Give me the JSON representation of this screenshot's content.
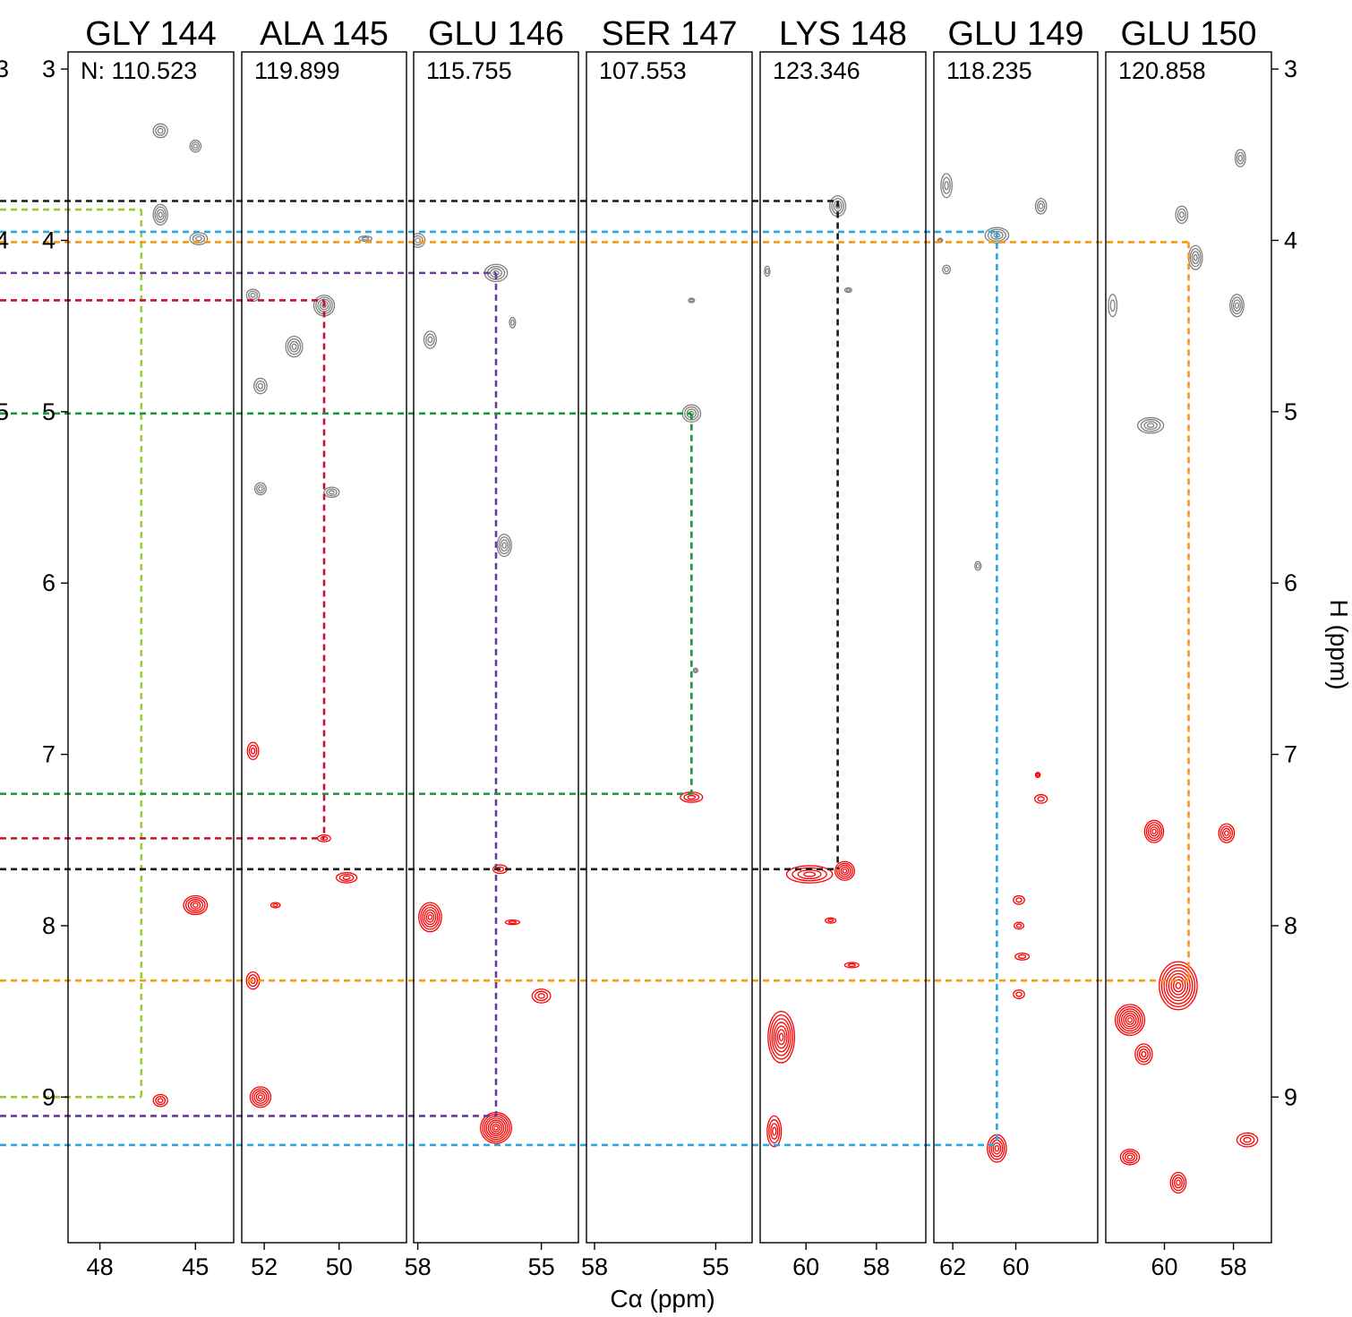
{
  "chart_data": {
    "type": "contour",
    "xlabel": "Cα (ppm)",
    "ylabel": "H (ppm)",
    "ylim": [
      9.85,
      2.9
    ],
    "y_ticks": [
      3,
      4,
      5,
      6,
      7,
      8,
      9
    ],
    "left_edge_tick_fragments": [
      "3",
      "4",
      "5"
    ],
    "colors": {
      "negative_contours": "#808080",
      "positive_contours": "#ff0000",
      "frame": "#000000"
    },
    "strips": [
      {
        "residue": "GLY 144",
        "n_label": "N: 110.523",
        "xlim": [
          49.0,
          43.8
        ],
        "x_ticks": [
          48,
          45
        ]
      },
      {
        "residue": "ALA 145",
        "n_label": "119.899",
        "xlim": [
          52.6,
          48.2
        ],
        "x_ticks": [
          52,
          50
        ]
      },
      {
        "residue": "GLU 146",
        "n_label": "115.755",
        "xlim": [
          58.1,
          54.1
        ],
        "x_ticks": [
          58,
          55
        ]
      },
      {
        "residue": "SER 147",
        "n_label": "107.553",
        "xlim": [
          58.2,
          54.1
        ],
        "x_ticks": [
          58,
          55
        ]
      },
      {
        "residue": "LYS 148",
        "n_label": "123.346",
        "xlim": [
          61.3,
          56.6
        ],
        "x_ticks": [
          60,
          58
        ]
      },
      {
        "residue": "GLU 149",
        "n_label": "118.235",
        "xlim": [
          62.6,
          57.4
        ],
        "x_ticks": [
          62,
          60
        ]
      },
      {
        "residue": "GLU 150",
        "n_label": "120.858",
        "xlim": [
          61.7,
          56.9
        ],
        "x_ticks": [
          60,
          58
        ]
      }
    ],
    "connections": [
      {
        "color": "#9acd32",
        "ca": 46.7,
        "from_strip": 0,
        "h_top": 3.82,
        "h_bottom": 9.0
      },
      {
        "color": "#c8102e",
        "ca": 50.4,
        "from_strip": 1,
        "h_top": 4.35,
        "h_bottom": 7.49
      },
      {
        "color": "#6a3d9a",
        "ca": 56.1,
        "from_strip": 2,
        "h_top": 4.19,
        "h_bottom": 9.11
      },
      {
        "color": "#1a9641",
        "ca": 55.6,
        "from_strip": 3,
        "h_top": 5.01,
        "h_bottom": 7.23
      },
      {
        "color": "#1a1a1a",
        "ca": 59.1,
        "from_strip": 4,
        "h_top": 3.77,
        "h_bottom": 7.67
      },
      {
        "color": "#29a8e0",
        "ca": 60.6,
        "from_strip": 5,
        "h_top": 3.95,
        "h_bottom": 9.28
      },
      {
        "color": "#f39c12",
        "ca": 59.3,
        "from_strip": 6,
        "h_top": 4.01,
        "h_bottom": 8.32
      }
    ],
    "peaks": [
      {
        "s": 0,
        "ca": 46.1,
        "h": 3.36,
        "w": 0.45,
        "d": 0.08,
        "sign": "neg"
      },
      {
        "s": 0,
        "ca": 45.0,
        "h": 3.45,
        "w": 0.35,
        "d": 0.07,
        "sign": "neg"
      },
      {
        "s": 0,
        "ca": 46.1,
        "h": 3.85,
        "w": 0.45,
        "d": 0.12,
        "sign": "neg"
      },
      {
        "s": 0,
        "ca": 44.9,
        "h": 3.99,
        "w": 0.55,
        "d": 0.07,
        "sign": "neg"
      },
      {
        "s": 0,
        "ca": 45.0,
        "h": 7.88,
        "w": 0.75,
        "d": 0.11,
        "sign": "pos"
      },
      {
        "s": 0,
        "ca": 46.1,
        "h": 9.02,
        "w": 0.45,
        "d": 0.07,
        "sign": "pos"
      },
      {
        "s": 1,
        "ca": 52.3,
        "h": 4.32,
        "w": 0.35,
        "d": 0.07,
        "sign": "neg"
      },
      {
        "s": 1,
        "ca": 50.4,
        "h": 4.38,
        "w": 0.55,
        "d": 0.12,
        "sign": "neg"
      },
      {
        "s": 1,
        "ca": 51.2,
        "h": 4.62,
        "w": 0.45,
        "d": 0.12,
        "sign": "neg"
      },
      {
        "s": 1,
        "ca": 52.1,
        "h": 4.85,
        "w": 0.35,
        "d": 0.09,
        "sign": "neg"
      },
      {
        "s": 1,
        "ca": 49.3,
        "h": 3.99,
        "w": 0.35,
        "d": 0.03,
        "sign": "neg"
      },
      {
        "s": 1,
        "ca": 52.1,
        "h": 5.45,
        "w": 0.3,
        "d": 0.07,
        "sign": "neg"
      },
      {
        "s": 1,
        "ca": 50.2,
        "h": 5.47,
        "w": 0.4,
        "d": 0.06,
        "sign": "neg"
      },
      {
        "s": 1,
        "ca": 52.3,
        "h": 6.98,
        "w": 0.3,
        "d": 0.1,
        "sign": "pos"
      },
      {
        "s": 1,
        "ca": 50.4,
        "h": 7.49,
        "w": 0.35,
        "d": 0.04,
        "sign": "pos"
      },
      {
        "s": 1,
        "ca": 49.8,
        "h": 7.72,
        "w": 0.55,
        "d": 0.06,
        "sign": "pos"
      },
      {
        "s": 1,
        "ca": 51.7,
        "h": 7.88,
        "w": 0.25,
        "d": 0.03,
        "sign": "pos"
      },
      {
        "s": 1,
        "ca": 52.3,
        "h": 8.32,
        "w": 0.35,
        "d": 0.1,
        "sign": "pos"
      },
      {
        "s": 1,
        "ca": 52.1,
        "h": 9.0,
        "w": 0.55,
        "d": 0.12,
        "sign": "pos"
      },
      {
        "s": 2,
        "ca": 58.0,
        "h": 4.0,
        "w": 0.35,
        "d": 0.08,
        "sign": "neg"
      },
      {
        "s": 2,
        "ca": 56.1,
        "h": 4.19,
        "w": 0.55,
        "d": 0.1,
        "sign": "neg"
      },
      {
        "s": 2,
        "ca": 57.7,
        "h": 4.58,
        "w": 0.3,
        "d": 0.1,
        "sign": "neg"
      },
      {
        "s": 2,
        "ca": 55.7,
        "h": 4.48,
        "w": 0.15,
        "d": 0.06,
        "sign": "neg"
      },
      {
        "s": 2,
        "ca": 55.9,
        "h": 5.78,
        "w": 0.35,
        "d": 0.13,
        "sign": "neg"
      },
      {
        "s": 2,
        "ca": 57.7,
        "h": 7.95,
        "w": 0.55,
        "d": 0.17,
        "sign": "pos"
      },
      {
        "s": 2,
        "ca": 56.0,
        "h": 7.67,
        "w": 0.35,
        "d": 0.05,
        "sign": "pos"
      },
      {
        "s": 2,
        "ca": 55.7,
        "h": 7.98,
        "w": 0.35,
        "d": 0.02,
        "sign": "pos"
      },
      {
        "s": 2,
        "ca": 55.0,
        "h": 8.41,
        "w": 0.45,
        "d": 0.08,
        "sign": "pos"
      },
      {
        "s": 2,
        "ca": 56.1,
        "h": 9.18,
        "w": 0.75,
        "d": 0.18,
        "sign": "pos"
      },
      {
        "s": 3,
        "ca": 55.6,
        "h": 5.01,
        "w": 0.45,
        "d": 0.1,
        "sign": "neg"
      },
      {
        "s": 3,
        "ca": 55.6,
        "h": 4.35,
        "w": 0.15,
        "d": 0.02,
        "sign": "neg"
      },
      {
        "s": 3,
        "ca": 55.5,
        "h": 6.51,
        "w": 0.1,
        "d": 0.02,
        "sign": "neg"
      },
      {
        "s": 3,
        "ca": 55.6,
        "h": 7.25,
        "w": 0.55,
        "d": 0.06,
        "sign": "pos"
      },
      {
        "s": 4,
        "ca": 59.1,
        "h": 3.8,
        "w": 0.45,
        "d": 0.12,
        "sign": "neg"
      },
      {
        "s": 4,
        "ca": 58.8,
        "h": 4.29,
        "w": 0.2,
        "d": 0.02,
        "sign": "neg"
      },
      {
        "s": 4,
        "ca": 59.9,
        "h": 7.7,
        "w": 1.3,
        "d": 0.1,
        "sign": "pos"
      },
      {
        "s": 4,
        "ca": 58.9,
        "h": 7.68,
        "w": 0.55,
        "d": 0.11,
        "sign": "pos"
      },
      {
        "s": 4,
        "ca": 59.3,
        "h": 7.97,
        "w": 0.3,
        "d": 0.03,
        "sign": "pos"
      },
      {
        "s": 4,
        "ca": 58.7,
        "h": 8.23,
        "w": 0.4,
        "d": 0.03,
        "sign": "pos"
      },
      {
        "s": 4,
        "ca": 60.7,
        "h": 8.65,
        "w": 0.75,
        "d": 0.3,
        "sign": "pos"
      },
      {
        "s": 4,
        "ca": 60.9,
        "h": 9.2,
        "w": 0.4,
        "d": 0.18,
        "sign": "pos"
      },
      {
        "s": 4,
        "ca": 61.1,
        "h": 4.18,
        "w": 0.15,
        "d": 0.06,
        "sign": "neg"
      },
      {
        "s": 5,
        "ca": 62.2,
        "h": 3.68,
        "w": 0.35,
        "d": 0.14,
        "sign": "neg"
      },
      {
        "s": 5,
        "ca": 60.6,
        "h": 3.97,
        "w": 0.75,
        "d": 0.09,
        "sign": "neg"
      },
      {
        "s": 5,
        "ca": 59.2,
        "h": 3.8,
        "w": 0.35,
        "d": 0.09,
        "sign": "neg"
      },
      {
        "s": 5,
        "ca": 62.2,
        "h": 4.17,
        "w": 0.25,
        "d": 0.05,
        "sign": "neg"
      },
      {
        "s": 5,
        "ca": 62.4,
        "h": 4.0,
        "w": 0.15,
        "d": 0.02,
        "sign": "neg"
      },
      {
        "s": 5,
        "ca": 59.2,
        "h": 7.26,
        "w": 0.4,
        "d": 0.05,
        "sign": "pos"
      },
      {
        "s": 5,
        "ca": 59.3,
        "h": 7.12,
        "w": 0.15,
        "d": 0.03,
        "sign": "pos"
      },
      {
        "s": 5,
        "ca": 59.9,
        "h": 7.85,
        "w": 0.35,
        "d": 0.05,
        "sign": "pos"
      },
      {
        "s": 5,
        "ca": 59.9,
        "h": 8.0,
        "w": 0.3,
        "d": 0.04,
        "sign": "pos"
      },
      {
        "s": 5,
        "ca": 59.8,
        "h": 8.18,
        "w": 0.45,
        "d": 0.04,
        "sign": "pos"
      },
      {
        "s": 5,
        "ca": 59.9,
        "h": 8.4,
        "w": 0.35,
        "d": 0.05,
        "sign": "pos"
      },
      {
        "s": 5,
        "ca": 60.6,
        "h": 9.3,
        "w": 0.6,
        "d": 0.16,
        "sign": "pos"
      },
      {
        "s": 5,
        "ca": 61.2,
        "h": 5.9,
        "w": 0.2,
        "d": 0.05,
        "sign": "neg"
      },
      {
        "s": 6,
        "ca": 57.8,
        "h": 3.52,
        "w": 0.3,
        "d": 0.1,
        "sign": "neg"
      },
      {
        "s": 6,
        "ca": 59.5,
        "h": 3.85,
        "w": 0.35,
        "d": 0.1,
        "sign": "neg"
      },
      {
        "s": 6,
        "ca": 59.1,
        "h": 4.1,
        "w": 0.4,
        "d": 0.14,
        "sign": "neg"
      },
      {
        "s": 6,
        "ca": 57.9,
        "h": 4.38,
        "w": 0.4,
        "d": 0.13,
        "sign": "neg"
      },
      {
        "s": 6,
        "ca": 61.5,
        "h": 4.38,
        "w": 0.25,
        "d": 0.13,
        "sign": "neg"
      },
      {
        "s": 6,
        "ca": 60.4,
        "h": 5.08,
        "w": 0.75,
        "d": 0.09,
        "sign": "neg"
      },
      {
        "s": 6,
        "ca": 60.3,
        "h": 7.45,
        "w": 0.55,
        "d": 0.13,
        "sign": "pos"
      },
      {
        "s": 6,
        "ca": 58.2,
        "h": 7.46,
        "w": 0.45,
        "d": 0.11,
        "sign": "pos"
      },
      {
        "s": 6,
        "ca": 59.6,
        "h": 8.35,
        "w": 1.1,
        "d": 0.28,
        "sign": "pos"
      },
      {
        "s": 6,
        "ca": 61.0,
        "h": 8.55,
        "w": 0.85,
        "d": 0.18,
        "sign": "pos"
      },
      {
        "s": 6,
        "ca": 60.6,
        "h": 8.75,
        "w": 0.5,
        "d": 0.12,
        "sign": "pos"
      },
      {
        "s": 6,
        "ca": 61.0,
        "h": 9.35,
        "w": 0.55,
        "d": 0.09,
        "sign": "pos"
      },
      {
        "s": 6,
        "ca": 59.6,
        "h": 9.5,
        "w": 0.45,
        "d": 0.12,
        "sign": "pos"
      },
      {
        "s": 6,
        "ca": 57.6,
        "h": 9.25,
        "w": 0.6,
        "d": 0.08,
        "sign": "pos"
      }
    ]
  }
}
